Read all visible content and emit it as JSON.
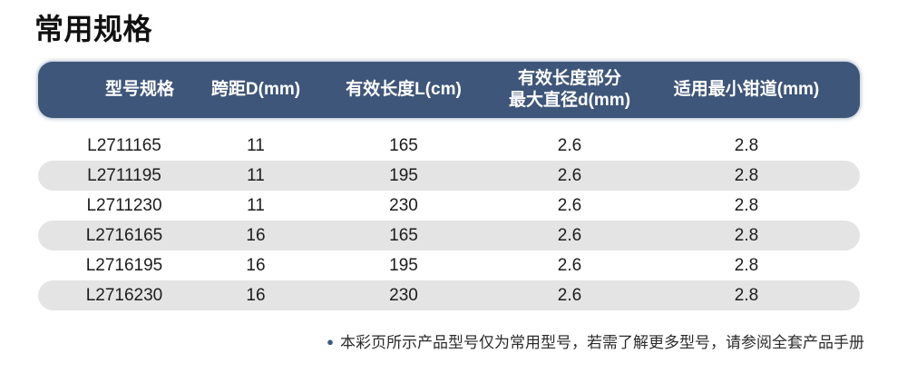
{
  "page": {
    "title": "常用规格"
  },
  "table": {
    "columns": [
      {
        "label": "型号规格"
      },
      {
        "label": "跨距D(mm)"
      },
      {
        "label": "有效长度L(cm)"
      },
      {
        "label": "有效长度部分\n最大直径d(mm)"
      },
      {
        "label": "适用最小钳道(mm)"
      }
    ],
    "rows": [
      {
        "model": "L2711165",
        "span_d": "11",
        "effective_length": "165",
        "max_diameter": "2.6",
        "min_channel": "2.8"
      },
      {
        "model": "L2711195",
        "span_d": "11",
        "effective_length": "195",
        "max_diameter": "2.6",
        "min_channel": "2.8"
      },
      {
        "model": "L2711230",
        "span_d": "11",
        "effective_length": "230",
        "max_diameter": "2.6",
        "min_channel": "2.8"
      },
      {
        "model": "L2716165",
        "span_d": "16",
        "effective_length": "165",
        "max_diameter": "2.6",
        "min_channel": "2.8"
      },
      {
        "model": "L2716195",
        "span_d": "16",
        "effective_length": "195",
        "max_diameter": "2.6",
        "min_channel": "2.8"
      },
      {
        "model": "L2716230",
        "span_d": "16",
        "effective_length": "230",
        "max_diameter": "2.6",
        "min_channel": "2.8"
      }
    ]
  },
  "footnote": {
    "bullet": "●",
    "text": "本彩页所示产品型号仅为常用型号，若需了解更多型号，请参阅全套产品手册"
  },
  "colors": {
    "header_bg": "#3E5679",
    "header_text": "#FFFFFF",
    "alt_row_bg": "#E4E4E4",
    "bullet": "#3D5A80",
    "body_text": "#1C1C1C",
    "title_text": "#111111"
  }
}
